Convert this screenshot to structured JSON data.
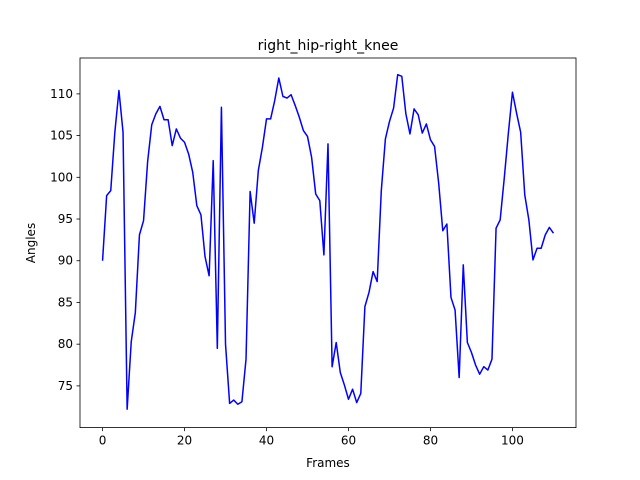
{
  "chart_data": {
    "type": "line",
    "title": "right_hip-right_knee",
    "xlabel": "Frames",
    "ylabel": "Angles",
    "xlim": [
      -5.5,
      115.5
    ],
    "ylim": [
      70.0,
      114.3
    ],
    "xticks": [
      0,
      20,
      40,
      60,
      80,
      100
    ],
    "yticks": [
      75,
      80,
      85,
      90,
      95,
      100,
      105,
      110
    ],
    "grid": false,
    "line_color": "#0000ff",
    "series": [
      {
        "values": [
          90.0,
          97.8,
          98.4,
          105.4,
          110.4,
          105.4,
          72.2,
          80.3,
          83.8,
          93.1,
          94.8,
          101.9,
          106.3,
          107.6,
          108.5,
          106.9,
          106.9,
          103.8,
          105.8,
          104.7,
          104.2,
          102.8,
          100.6,
          96.6,
          95.5,
          90.5,
          88.2,
          102.0,
          79.5,
          108.4,
          80.0,
          72.9,
          73.3,
          72.8,
          73.1,
          78.2,
          98.3,
          94.5,
          100.8,
          103.6,
          107.0,
          107.0,
          109.2,
          111.9,
          109.7,
          109.5,
          109.9,
          108.6,
          107.2,
          105.6,
          104.9,
          102.4,
          98.0,
          97.2,
          90.7,
          104.0,
          77.3,
          80.2,
          76.6,
          75.1,
          73.4,
          74.6,
          73.0,
          74.1,
          84.5,
          86.2,
          88.7,
          87.5,
          98.4,
          104.6,
          106.7,
          108.3,
          112.3,
          112.1,
          107.6,
          105.2,
          108.2,
          107.5,
          105.3,
          106.4,
          104.5,
          103.7,
          99.3,
          93.6,
          94.4,
          85.6,
          84.1,
          76.0,
          89.5,
          80.2,
          79.0,
          77.5,
          76.4,
          77.3,
          76.9,
          78.2,
          93.9,
          94.9,
          99.9,
          105.3,
          110.2,
          107.7,
          105.4,
          97.9,
          94.9,
          90.1,
          91.5,
          91.5,
          93.1,
          94.0,
          93.3
        ]
      }
    ]
  }
}
